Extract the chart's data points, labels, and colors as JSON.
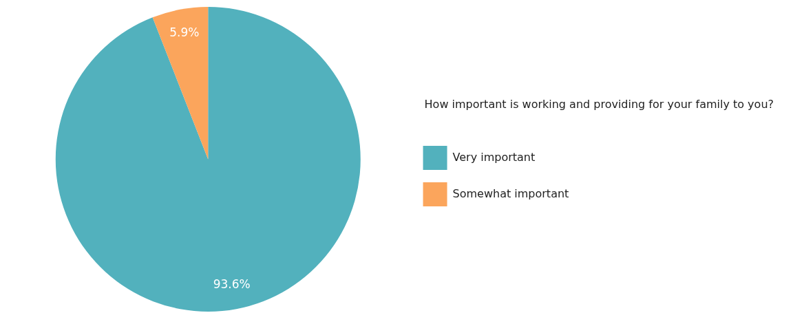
{
  "chart_data": {
    "type": "pie",
    "legend_title": "How important is working and providing for your family to you?",
    "categories": [
      "Very important",
      "Somewhat important"
    ],
    "values": [
      93.6,
      5.9
    ],
    "colors": [
      "#52b1bd",
      "#fba55c"
    ],
    "value_labels": [
      "93.6%",
      "5.9%"
    ],
    "legend": "right"
  }
}
